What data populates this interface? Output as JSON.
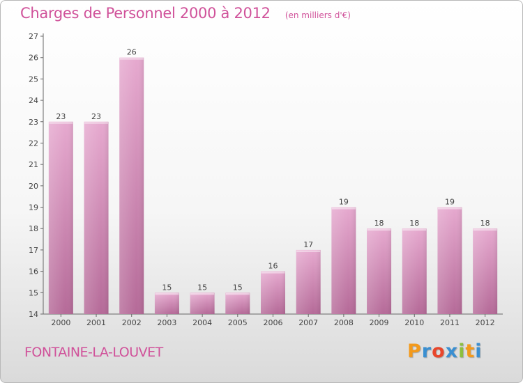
{
  "chart_data": {
    "type": "bar",
    "title": "Charges de Personnel 2000 à 2012",
    "subtitle": "(en milliers d'€)",
    "xlabel": "",
    "ylabel": "",
    "categories": [
      "2000",
      "2001",
      "2002",
      "2003",
      "2004",
      "2005",
      "2006",
      "2007",
      "2008",
      "2009",
      "2010",
      "2011",
      "2012"
    ],
    "values": [
      23,
      23,
      26,
      15,
      15,
      15,
      16,
      17,
      19,
      18,
      18,
      19,
      18
    ],
    "ylim": [
      14,
      27
    ],
    "yticks": [
      14,
      15,
      16,
      17,
      18,
      19,
      20,
      21,
      22,
      23,
      24,
      25,
      26,
      27
    ],
    "grid": false,
    "bar_color": "#d58fba"
  },
  "footer": {
    "commune": "FONTAINE-LA-LOUVET",
    "logo_letters": [
      "P",
      "r",
      "o",
      "x",
      "i",
      "t",
      "i"
    ],
    "logo_colors": [
      "#f39a1c",
      "#3a8fd1",
      "#e8462b",
      "#3a8fd1",
      "#8cbf3f",
      "#f39a1c",
      "#3a8fd1"
    ]
  }
}
